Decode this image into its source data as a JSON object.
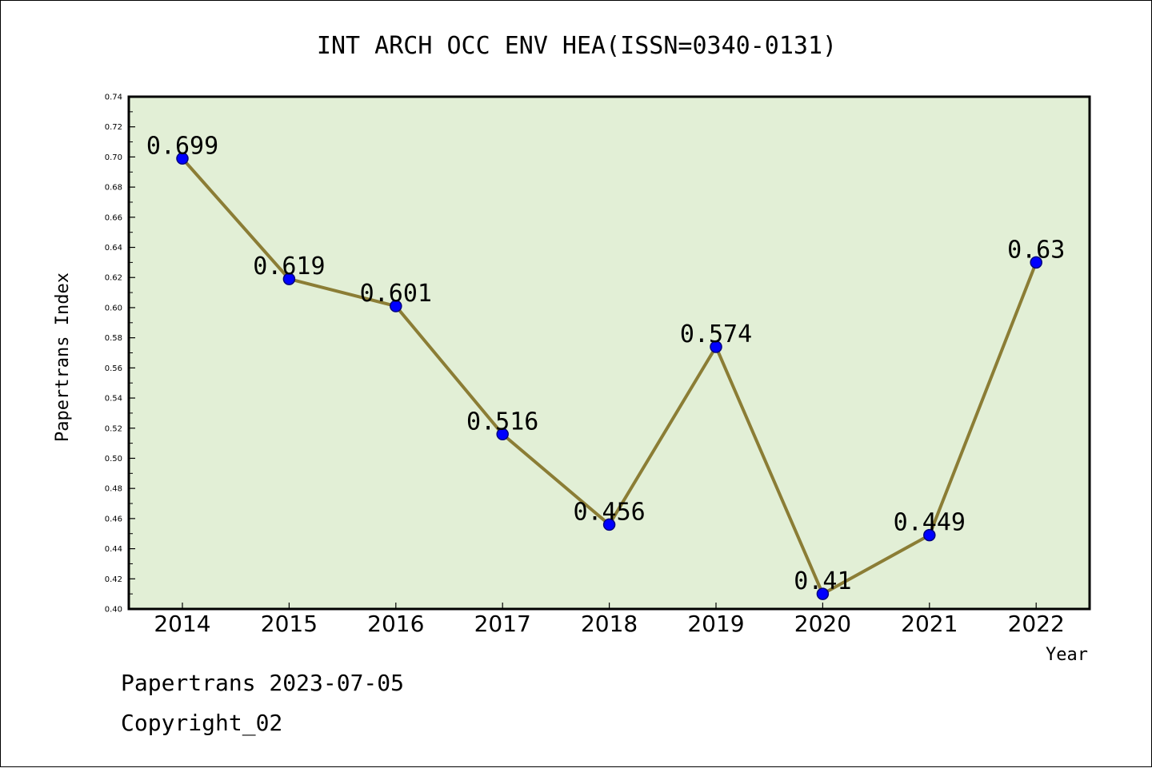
{
  "chart_data": {
    "type": "line",
    "title": "INT ARCH OCC ENV HEA(ISSN=0340-0131)",
    "xlabel": "Year",
    "ylabel": "Papertrans Index",
    "categories": [
      "2014",
      "2015",
      "2016",
      "2017",
      "2018",
      "2019",
      "2020",
      "2021",
      "2022"
    ],
    "values": [
      0.699,
      0.619,
      0.601,
      0.516,
      0.456,
      0.574,
      0.41,
      0.449,
      0.63
    ],
    "data_labels": [
      "0.699",
      "0.619",
      "0.601",
      "0.516",
      "0.456",
      "0.574",
      "0.41",
      "0.449",
      "0.63"
    ],
    "ylim": [
      0.4,
      0.74
    ],
    "yticks": [
      "0.40",
      "0.42",
      "0.44",
      "0.46",
      "0.48",
      "0.50",
      "0.52",
      "0.54",
      "0.56",
      "0.58",
      "0.60",
      "0.62",
      "0.64",
      "0.66",
      "0.68",
      "0.70",
      "0.72",
      "0.74"
    ],
    "grid": false,
    "colors": {
      "plot_background": "#e2efd6",
      "line": "#8b7d35",
      "marker_fill": "#0000ff",
      "marker_stroke": "#000080"
    }
  },
  "footer": {
    "line1": "Papertrans 2023-07-05",
    "line2": "Copyright_02"
  }
}
